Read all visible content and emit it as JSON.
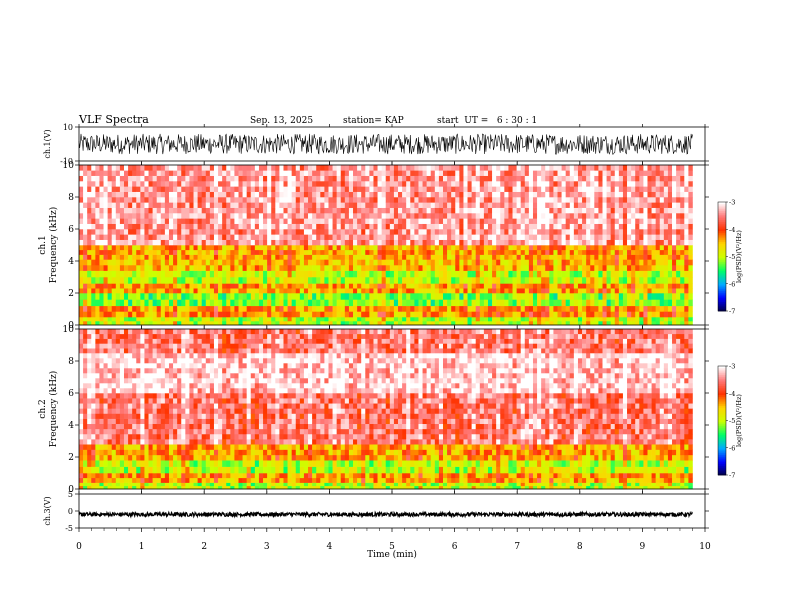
{
  "header": {
    "title": "VLF Spectra",
    "date": "Sep. 13, 2025",
    "station": "station= KAP",
    "start": "start  UT =   6 : 30 : 1"
  },
  "colors": {
    "trace": "#000000",
    "colormap": [
      "#000040",
      "#0000ff",
      "#00aaff",
      "#00ff66",
      "#ccff00",
      "#ffd400",
      "#ff3300",
      "#ff7a7a",
      "#ffffff"
    ]
  },
  "chart_data": [
    {
      "id": "ch1-waveform",
      "type": "line",
      "ylabel": "ch.1(V)",
      "ylim": [
        -10,
        10
      ],
      "yticks": [
        {
          "v": 10,
          "label": "10"
        },
        {
          "v": -10,
          "label": "-10"
        }
      ],
      "amplitude_range": [
        -6,
        6
      ]
    },
    {
      "id": "ch1-spectrogram",
      "type": "heatmap",
      "ylabel": "ch.1\nFrequency (kHz)",
      "ylim": [
        0,
        10
      ],
      "yticks": [
        "0",
        "2",
        "4",
        "6",
        "8",
        "10"
      ],
      "profile": [
        {
          "from": 0.0,
          "to": 0.5,
          "level": -5.0
        },
        {
          "from": 0.5,
          "to": 1.2,
          "level": -4.3
        },
        {
          "from": 1.2,
          "to": 2.0,
          "level": -5.2
        },
        {
          "from": 2.0,
          "to": 2.6,
          "level": -4.4
        },
        {
          "from": 2.6,
          "to": 3.4,
          "level": -5.0
        },
        {
          "from": 3.4,
          "to": 4.1,
          "level": -4.5
        },
        {
          "from": 4.1,
          "to": 5.0,
          "level": -4.4
        },
        {
          "from": 5.0,
          "to": 10.0,
          "level": -3.4
        }
      ],
      "colorbar": {
        "label": "log(PSD)(V²/Hz)",
        "ticks": [
          "-3",
          "-4",
          "-5",
          "-6",
          "-7"
        ],
        "range": [
          -7,
          -3
        ]
      }
    },
    {
      "id": "ch2-spectrogram",
      "type": "heatmap",
      "ylabel": "ch.2\nFrequency (kHz)",
      "ylim": [
        0,
        10
      ],
      "yticks": [
        "0",
        "2",
        "4",
        "6",
        "8",
        "10"
      ],
      "profile": [
        {
          "from": 0.0,
          "to": 0.4,
          "level": -5.0
        },
        {
          "from": 0.4,
          "to": 1.0,
          "level": -4.4
        },
        {
          "from": 1.0,
          "to": 1.8,
          "level": -5.0
        },
        {
          "from": 1.8,
          "to": 2.8,
          "level": -4.4
        },
        {
          "from": 2.8,
          "to": 6.0,
          "level": -3.6
        },
        {
          "from": 6.0,
          "to": 8.5,
          "level": -3.2
        },
        {
          "from": 8.5,
          "to": 10.0,
          "level": -3.6
        }
      ],
      "colorbar": {
        "label": "log(PSD)(V²/Hz)",
        "ticks": [
          "-3",
          "-4",
          "-5",
          "-6",
          "-7"
        ],
        "range": [
          -7,
          -3
        ]
      }
    },
    {
      "id": "ch3-waveform",
      "type": "line",
      "ylabel": "ch.3(V)",
      "ylim": [
        -5,
        5
      ],
      "yticks": [
        {
          "v": 5,
          "label": "5"
        },
        {
          "v": 0,
          "label": "0"
        },
        {
          "v": -5,
          "label": "-5"
        }
      ],
      "baseline": -1.0,
      "amplitude_range": [
        -1.6,
        -0.4
      ]
    }
  ],
  "xaxis": {
    "label": "Time (min)",
    "range": [
      0,
      10
    ],
    "data_end": 9.8,
    "ticks": [
      "0",
      "1",
      "2",
      "3",
      "4",
      "5",
      "6",
      "7",
      "8",
      "9",
      "10"
    ]
  }
}
